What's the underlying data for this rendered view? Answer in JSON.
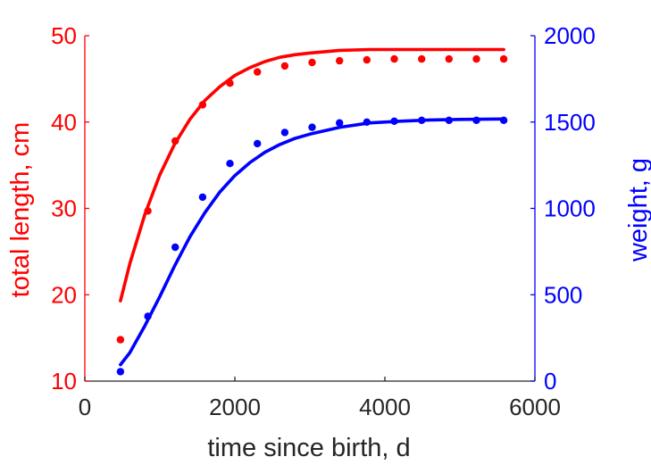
{
  "chart_data": {
    "type": "scatter",
    "title": "",
    "xlabel": "time since birth, d",
    "ylabel_left": "total length, cm",
    "ylabel_right": "weight, g",
    "xlim": [
      0,
      6000
    ],
    "ylim_left": [
      10,
      50
    ],
    "ylim_right": [
      0,
      2000
    ],
    "x_ticks": [
      "0",
      "2000",
      "4000",
      "6000"
    ],
    "y_left_ticks": [
      "10",
      "20",
      "30",
      "40",
      "50"
    ],
    "y_right_ticks": [
      "0",
      "500",
      "1000",
      "1500",
      "2000"
    ],
    "grid": false,
    "colors": {
      "length": "#ff0000",
      "weight": "#0000ff",
      "axis": "#262626"
    },
    "series": [
      {
        "axis": "left",
        "color": "#ff0000",
        "data_points": {
          "x": [
            475,
            840,
            1205,
            1570,
            1935,
            2300,
            2665,
            3030,
            3395,
            3760,
            4125,
            4490,
            4855,
            5220,
            5585
          ],
          "y": [
            14.8,
            29.7,
            37.8,
            42.0,
            44.5,
            45.8,
            46.5,
            46.9,
            47.1,
            47.2,
            47.3,
            47.3,
            47.3,
            47.3,
            47.3
          ]
        },
        "fit_curve": {
          "x": [
            475,
            600,
            800,
            1000,
            1200,
            1400,
            1600,
            1800,
            2000,
            2200,
            2400,
            2600,
            2800,
            3000,
            3400,
            3800,
            4200,
            4600,
            5000,
            5585
          ],
          "y": [
            19.3,
            23.6,
            29.3,
            33.9,
            37.5,
            40.3,
            42.5,
            44.1,
            45.4,
            46.3,
            47.0,
            47.5,
            47.8,
            48.0,
            48.3,
            48.4,
            48.4,
            48.4,
            48.4,
            48.4
          ]
        }
      },
      {
        "axis": "right",
        "color": "#0000ff",
        "data_points": {
          "x": [
            475,
            840,
            1205,
            1570,
            1935,
            2300,
            2665,
            3030,
            3395,
            3760,
            4125,
            4490,
            4855,
            5220,
            5585
          ],
          "y": [
            55,
            375,
            775,
            1065,
            1260,
            1375,
            1440,
            1470,
            1495,
            1500,
            1505,
            1510,
            1510,
            1510,
            1510
          ]
        },
        "fit_curve": {
          "x": [
            475,
            600,
            800,
            1000,
            1200,
            1400,
            1600,
            1800,
            2000,
            2200,
            2400,
            2600,
            2800,
            3000,
            3400,
            3800,
            4200,
            4600,
            5000,
            5585
          ],
          "y": [
            95,
            165,
            320,
            490,
            670,
            835,
            975,
            1095,
            1190,
            1265,
            1325,
            1370,
            1405,
            1430,
            1470,
            1495,
            1505,
            1512,
            1515,
            1518
          ]
        }
      }
    ]
  }
}
